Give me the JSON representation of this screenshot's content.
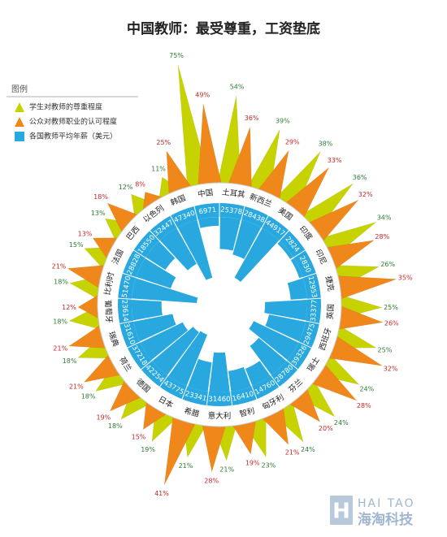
{
  "chart_data": {
    "type": "radial",
    "title": "中国教师：最受尊重，工资垫底",
    "legend_title": "图例",
    "categories": [
      "中国",
      "土耳其",
      "新西兰",
      "美国",
      "印度",
      "印尼",
      "捷克",
      "英国",
      "西班牙",
      "瑞士",
      "芬兰",
      "匈牙利",
      "智利",
      "意大利",
      "希腊",
      "日本",
      "德国",
      "荷兰",
      "瑞典",
      "葡萄牙",
      "比利时",
      "法国",
      "巴西",
      "以色列",
      "韩国"
    ],
    "series": [
      {
        "name": "学生对教师的尊重程度",
        "color": "#c6d300",
        "values": [
          75,
          54,
          39,
          38,
          36,
          34,
          26,
          25,
          25,
          24,
          24,
          24,
          23,
          21,
          21,
          19,
          18,
          18,
          18,
          18,
          18,
          15,
          13,
          12,
          11
        ],
        "value_labels": [
          "75%",
          "54%",
          "39%",
          "38%",
          "36%",
          "34%",
          "26%",
          "25%",
          "25%",
          "24%",
          "24%",
          "24%",
          "23%",
          "21%",
          "21%",
          "19%",
          "18%",
          "18%",
          "18%",
          "18%",
          "18%",
          "15%",
          "13%",
          "12%",
          "11%"
        ]
      },
      {
        "name": "公众对教师职业的认可程度",
        "color": "#f0871b",
        "values": [
          49,
          36,
          29,
          33,
          32,
          28,
          35,
          26,
          32,
          28,
          20,
          21,
          19,
          28,
          41,
          15,
          19,
          21,
          21,
          12,
          21,
          13,
          18,
          8,
          25
        ],
        "value_labels": [
          "49%",
          "36%",
          "29%",
          "33%",
          "32%",
          "28%",
          "35%",
          "26%",
          "32%",
          "28%",
          "20%",
          "21%",
          "19%",
          "28%",
          "41%",
          "15%",
          "19%",
          "21%",
          "21%",
          "12%",
          "21%",
          "13%",
          "18%",
          "8%",
          "25%"
        ]
      },
      {
        "name": "各国教师平均年薪（美元）",
        "color": "#29a8e0",
        "values": [
          6971,
          25378,
          28438,
          44917,
          2824,
          2830,
          12953,
          33377,
          29475,
          39326,
          28780,
          14760,
          16410,
          31460,
          23341,
          43775,
          42254,
          37218,
          31610,
          23614,
          51470,
          28828,
          18550,
          32447,
          47340
        ]
      }
    ]
  },
  "watermark": {
    "en": "HAI TAO",
    "cn": "海淘科技"
  }
}
